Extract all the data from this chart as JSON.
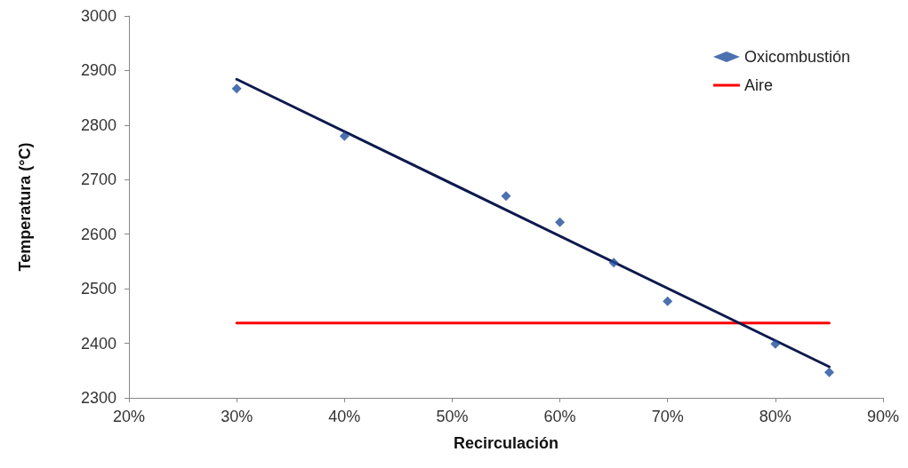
{
  "chart_data": {
    "type": "scatter",
    "xlabel": "Recirculación",
    "ylabel": "Temperatura (°C)",
    "legend": "top right",
    "grid": false,
    "xlim": [
      20,
      90
    ],
    "xticks": [
      {
        "value": 20,
        "label": "20%"
      },
      {
        "value": 30,
        "label": "30%"
      },
      {
        "value": 40,
        "label": "40%"
      },
      {
        "value": 50,
        "label": "50%"
      },
      {
        "value": 60,
        "label": "60%"
      },
      {
        "value": 70,
        "label": "70%"
      },
      {
        "value": 80,
        "label": "80%"
      },
      {
        "value": 90,
        "label": "90%"
      }
    ],
    "ylim": [
      2300,
      3000
    ],
    "yticks": [
      2300,
      2400,
      2500,
      2600,
      2700,
      2800,
      2900,
      3000
    ],
    "series": [
      {
        "name": "Oxicombustión",
        "marker": "diamond",
        "color": "#1f4e9c",
        "x": [
          30,
          40,
          55,
          60,
          65,
          70,
          80,
          85
        ],
        "values": [
          2867,
          2780,
          2670,
          2622,
          2548,
          2477,
          2399,
          2347
        ]
      },
      {
        "name": "Aire",
        "type": "line",
        "marker": "none",
        "color": "#ff0000",
        "x": [
          30,
          85
        ],
        "values": [
          2437,
          2437
        ]
      },
      {
        "type": "line",
        "marker": "none",
        "color": "#0d1a4d",
        "x": [
          30,
          85
        ],
        "values": [
          2884,
          2357
        ]
      }
    ]
  }
}
